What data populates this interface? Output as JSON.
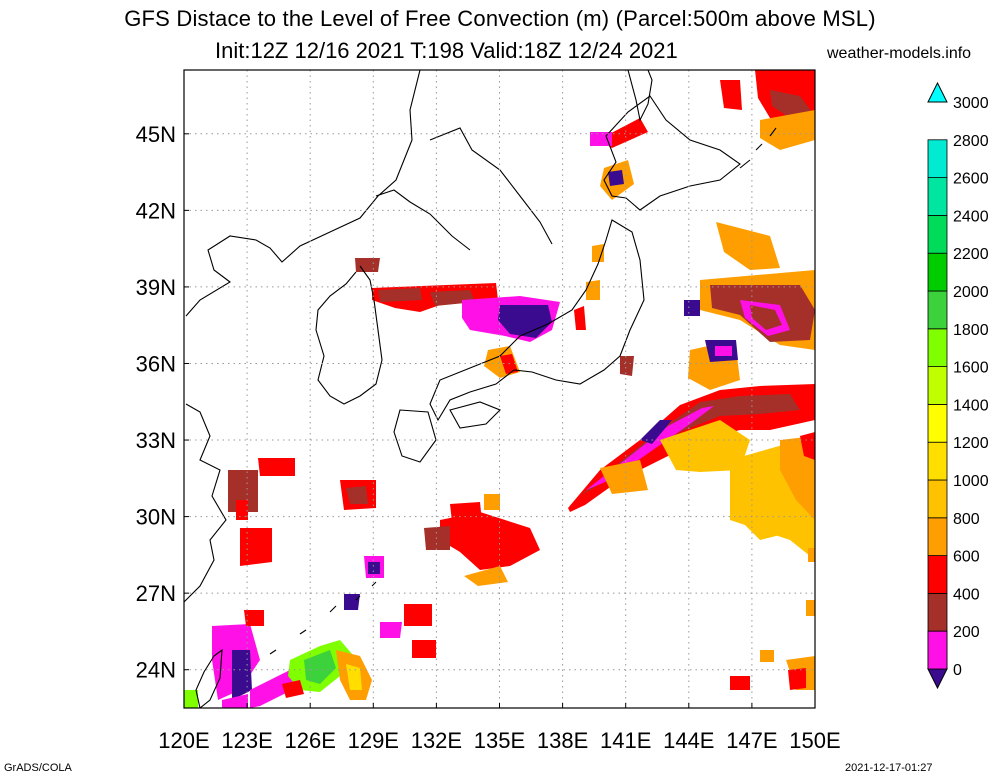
{
  "title": {
    "line1": "GFS Distace to the Level of Free Convection (m) (Parcel:500m above MSL)",
    "line2": "Init:12Z 12/16 2021 T:198 Valid:18Z 12/24 2021",
    "credit": "weather-models.info"
  },
  "footer": {
    "left": "GrADS/COLA",
    "right": "2021-12-17-01:27"
  },
  "map": {
    "lon_labels": [
      "120E",
      "123E",
      "126E",
      "129E",
      "132E",
      "135E",
      "138E",
      "141E",
      "144E",
      "147E",
      "150E"
    ],
    "lat_labels": [
      "24N",
      "27N",
      "30N",
      "33N",
      "36N",
      "39N",
      "42N",
      "45N"
    ],
    "lon_range": [
      120,
      150
    ],
    "lat_range": [
      22.5,
      47.5
    ],
    "grid": "dotted"
  },
  "colorbar": {
    "labels": [
      "0",
      "200",
      "400",
      "600",
      "800",
      "1000",
      "1200",
      "1400",
      "1600",
      "1800",
      "2000",
      "2200",
      "2400",
      "2600",
      "2800",
      "3000"
    ],
    "colors": [
      "#3a0b8e",
      "#ff10e6",
      "#a5302a",
      "#ff0000",
      "#ff9e00",
      "#ffc200",
      "#ffde00",
      "#ffff00",
      "#c0ff00",
      "#80ff00",
      "#3cd23c",
      "#00cc00",
      "#00dc5a",
      "#00e6a0",
      "#00ebd2",
      "#00ffff"
    ]
  }
}
